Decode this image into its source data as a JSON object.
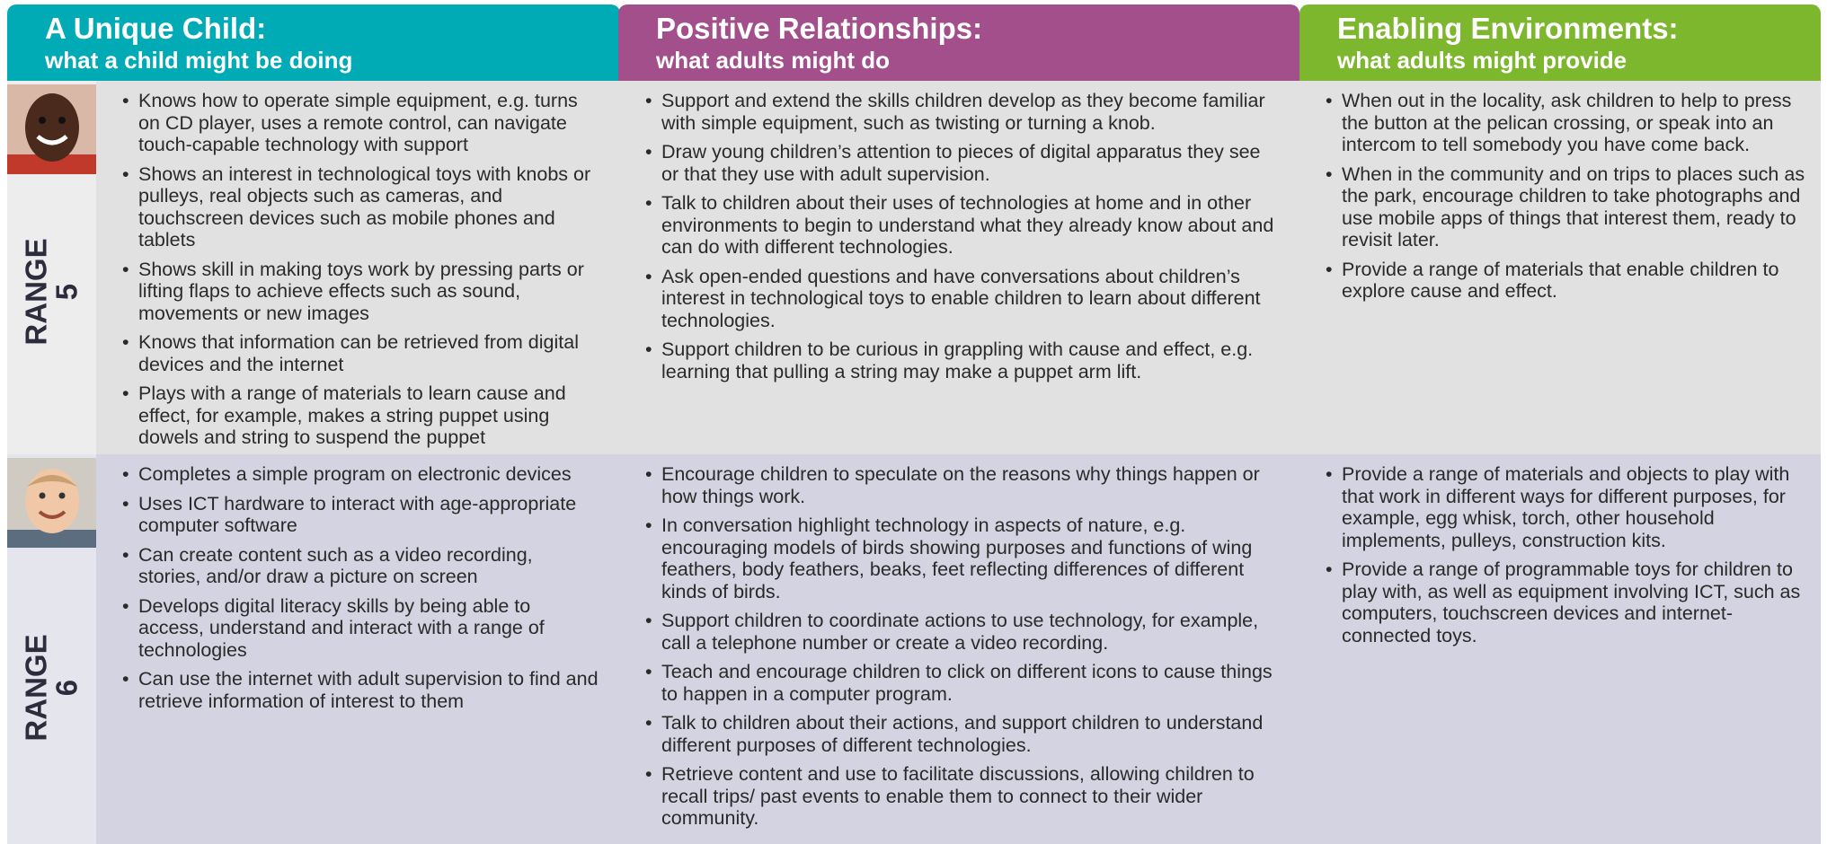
{
  "headers": [
    {
      "title": "A Unique Child:",
      "subtitle": "what a child might be doing"
    },
    {
      "title": "Positive Relationships:",
      "subtitle": "what adults might do"
    },
    {
      "title": "Enabling Environments:",
      "subtitle": "what adults might provide"
    }
  ],
  "rows": [
    {
      "label": "RANGE",
      "number": "5",
      "cells": [
        [
          "Knows how to operate simple equipment, e.g. turns on CD player, uses a remote control, can navigate touch-capable technology with support",
          "Shows an interest in technological toys with knobs or pulleys, real objects such as cameras, and touchscreen devices such as mobile phones and tablets",
          "Shows skill in making toys work by pressing parts or lifting flaps to achieve effects such as sound, movements or new images",
          "Knows that information can be retrieved from digital devices and the internet",
          "Plays with a range of materials to learn cause and effect, for example, makes a string puppet using dowels and string to suspend the puppet"
        ],
        [
          "Support and extend the skills children develop as they become familiar with simple equipment, such as twisting or turning a knob.",
          "Draw young children’s attention to pieces of digital apparatus they see or that they use with adult supervision.",
          "Talk to children about their uses of technologies at home and in other environments to begin to understand what they already know about and can do with different technologies.",
          "Ask open-ended questions and have conversations about children’s interest in technological toys to enable children to learn about different technologies.",
          "Support children to be curious in grappling with cause and effect, e.g. learning that pulling a string may make a puppet arm lift."
        ],
        [
          "When out in the locality, ask children to help to press the button at the pelican crossing, or speak into an intercom to tell somebody you have come back.",
          "When in the community and on trips to places such as the park, encourage children to take photographs and use mobile apps of things that interest them, ready to revisit later.",
          "Provide a range of materials that enable children to explore cause and effect."
        ]
      ]
    },
    {
      "label": "RANGE",
      "number": "6",
      "cells": [
        [
          "Completes a simple program on electronic devices",
          "Uses ICT hardware to interact with age-appropriate computer software",
          "Can create content such as a video recording, stories, and/or draw a picture on screen",
          "Develops digital literacy skills by being able to access, understand and interact with a range of technologies",
          "Can use the internet with adult supervision to find and retrieve information of interest to them"
        ],
        [
          "Encourage children to speculate on the reasons why things happen or how things work.",
          "In conversation highlight technology in aspects of nature, e.g. encouraging models of birds showing purposes and functions of wing feathers, body feathers, beaks, feet reflecting differences of different kinds of birds.",
          "Support children to coordinate actions to use technology, for example, call a telephone number or create a video recording.",
          "Teach and encourage children to click on different icons to cause things to happen in a computer program.",
          "Talk to children about their actions, and support children to understand different purposes of different technologies.",
          "Retrieve content and use to facilitate discussions, allowing children to recall trips/ past events to enable them to connect to their wider community."
        ],
        [
          "Provide a range of materials and objects to play with that work in different ways for different purposes, for example, egg whisk, torch, other household implements, pulleys, construction kits.",
          "Provide a range of programmable toys for children to play with, as well as equipment involving ICT, such as computers, touchscreen devices and internet-connected toys."
        ]
      ]
    }
  ]
}
